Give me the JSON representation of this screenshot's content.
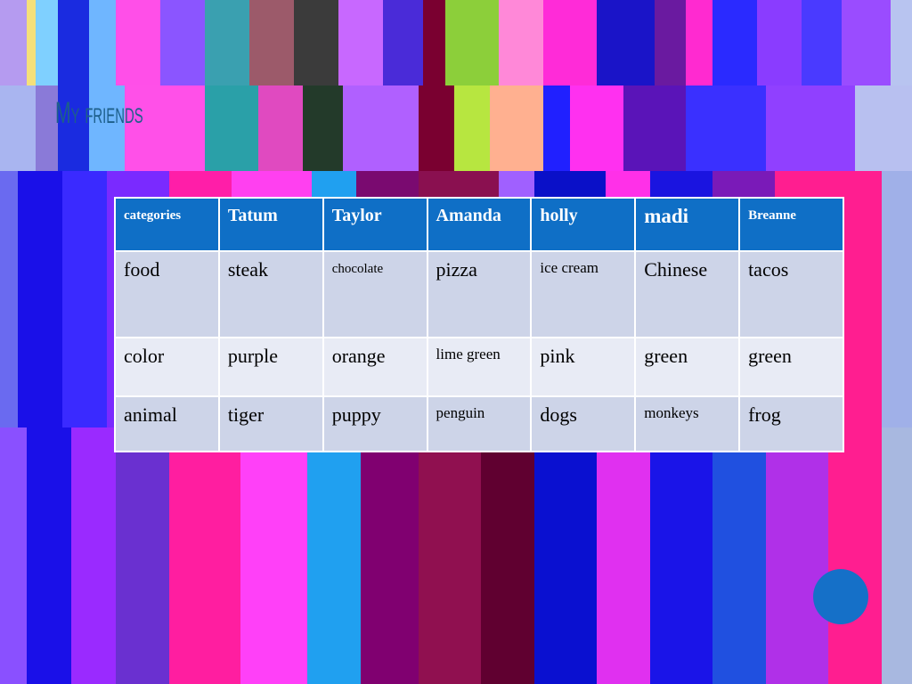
{
  "title": "My friends",
  "table": {
    "header": [
      "categories",
      "Tatum",
      "Taylor",
      "Amanda",
      "holly",
      "madi",
      "Breanne"
    ],
    "rows": [
      [
        "food",
        "steak",
        "chocolate",
        "pizza",
        "ice cream",
        "Chinese",
        "tacos"
      ],
      [
        "color",
        "purple",
        "orange",
        "lime green",
        "pink",
        "green",
        "green"
      ],
      [
        "animal",
        "tiger",
        "puppy",
        "penguin",
        "dogs",
        "monkeys",
        "frog"
      ]
    ]
  }
}
